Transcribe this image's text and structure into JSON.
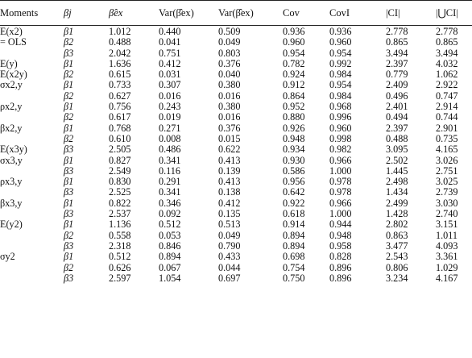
{
  "headers": [
    "Moments",
    "βj",
    "β̂ex",
    "Var(β̂ex)",
    "Var(β̂ex)",
    "Cov",
    "CovI",
    "|CI|",
    "|⋃CI|"
  ],
  "rows": [
    {
      "moment": "E(x2)",
      "beta": "β1",
      "v": [
        "1.012",
        "0.440",
        "0.509",
        "0.936",
        "0.936",
        "2.778",
        "2.778"
      ]
    },
    {
      "moment": "= OLS",
      "beta": "β2",
      "v": [
        "0.488",
        "0.041",
        "0.049",
        "0.960",
        "0.960",
        "0.865",
        "0.865"
      ]
    },
    {
      "moment": "",
      "beta": "β3",
      "v": [
        "2.042",
        "0.751",
        "0.803",
        "0.954",
        "0.954",
        "3.494",
        "3.494"
      ]
    },
    {
      "moment": "E(y)",
      "beta": "β1",
      "v": [
        "1.636",
        "0.412",
        "0.376",
        "0.782",
        "0.992",
        "2.397",
        "4.032"
      ]
    },
    {
      "moment": "E(x2y)",
      "beta": "β2",
      "v": [
        "0.615",
        "0.031",
        "0.040",
        "0.924",
        "0.984",
        "0.779",
        "1.062"
      ]
    },
    {
      "moment": "σx2,y",
      "beta": "β1",
      "v": [
        "0.733",
        "0.307",
        "0.380",
        "0.912",
        "0.954",
        "2.409",
        "2.922"
      ]
    },
    {
      "moment": "",
      "beta": "β2",
      "v": [
        "0.627",
        "0.016",
        "0.016",
        "0.864",
        "0.984",
        "0.496",
        "0.747"
      ]
    },
    {
      "moment": "ρx2,y",
      "beta": "β1",
      "v": [
        "0.756",
        "0.243",
        "0.380",
        "0.952",
        "0.968",
        "2.401",
        "2.914"
      ]
    },
    {
      "moment": "",
      "beta": "β2",
      "v": [
        "0.617",
        "0.019",
        "0.016",
        "0.880",
        "0.996",
        "0.494",
        "0.744"
      ]
    },
    {
      "moment": "βx2,y",
      "beta": "β1",
      "v": [
        "0.768",
        "0.271",
        "0.376",
        "0.926",
        "0.960",
        "2.397",
        "2.901"
      ]
    },
    {
      "moment": "",
      "beta": "β2",
      "v": [
        "0.610",
        "0.008",
        "0.015",
        "0.948",
        "0.998",
        "0.488",
        "0.735"
      ]
    },
    {
      "moment": "E(x3y)",
      "beta": "β3",
      "v": [
        "2.505",
        "0.486",
        "0.622",
        "0.934",
        "0.982",
        "3.095",
        "4.165"
      ]
    },
    {
      "moment": "σx3,y",
      "beta": "β1",
      "v": [
        "0.827",
        "0.341",
        "0.413",
        "0.930",
        "0.966",
        "2.502",
        "3.026"
      ]
    },
    {
      "moment": "",
      "beta": "β3",
      "v": [
        "2.549",
        "0.116",
        "0.139",
        "0.586",
        "1.000",
        "1.445",
        "2.751"
      ]
    },
    {
      "moment": "ρx3,y",
      "beta": "β1",
      "v": [
        "0.830",
        "0.291",
        "0.413",
        "0.956",
        "0.978",
        "2.498",
        "3.025"
      ]
    },
    {
      "moment": "",
      "beta": "β3",
      "v": [
        "2.525",
        "0.341",
        "0.138",
        "0.642",
        "0.978",
        "1.434",
        "2.739"
      ]
    },
    {
      "moment": "βx3,y",
      "beta": "β1",
      "v": [
        "0.822",
        "0.346",
        "0.412",
        "0.922",
        "0.966",
        "2.499",
        "3.030"
      ]
    },
    {
      "moment": "",
      "beta": "β3",
      "v": [
        "2.537",
        "0.092",
        "0.135",
        "0.618",
        "1.000",
        "1.428",
        "2.740"
      ]
    },
    {
      "moment": "E(y2)",
      "beta": "β1",
      "v": [
        "1.136",
        "0.512",
        "0.513",
        "0.914",
        "0.944",
        "2.802",
        "3.151"
      ]
    },
    {
      "moment": "",
      "beta": "β2",
      "v": [
        "0.558",
        "0.053",
        "0.049",
        "0.894",
        "0.948",
        "0.863",
        "1.011"
      ]
    },
    {
      "moment": "",
      "beta": "β3",
      "v": [
        "2.318",
        "0.846",
        "0.790",
        "0.894",
        "0.958",
        "3.477",
        "4.093"
      ]
    },
    {
      "moment": "σy2",
      "beta": "β1",
      "v": [
        "0.512",
        "0.894",
        "0.433",
        "0.698",
        "0.828",
        "2.543",
        "3.361"
      ]
    },
    {
      "moment": "",
      "beta": "β2",
      "v": [
        "0.626",
        "0.067",
        "0.044",
        "0.754",
        "0.896",
        "0.806",
        "1.029"
      ]
    },
    {
      "moment": "",
      "beta": "β3",
      "v": [
        "2.597",
        "1.054",
        "0.697",
        "0.750",
        "0.896",
        "3.234",
        "4.167"
      ]
    }
  ]
}
